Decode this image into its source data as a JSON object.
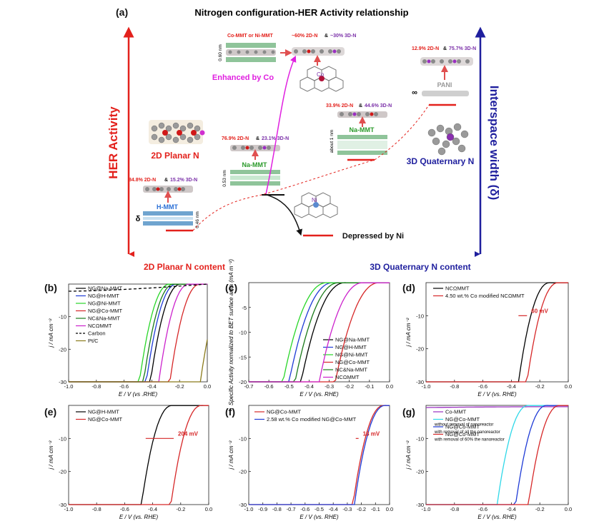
{
  "panel_a": {
    "label": "(a)",
    "title": "Nitrogen configuration-HER Activity relationship",
    "y_axis_label": "HER Activity",
    "right_axis_label": "Interspace width (δ)",
    "x_left_label": "2D Planar N content",
    "x_right_label": "3D Quaternary N content",
    "label_2d_planar": "2D Planar N",
    "label_3d_quaternary": "3D Quaternary N",
    "label_enhanced": "Enhanced by Co",
    "label_depressed": "Depressed by Ni",
    "hmmt": {
      "label": "H-MMT",
      "pct_2d": "84.8% 2D-N",
      "amp": "&",
      "pct_3d": "15.2% 3D-N",
      "spacing": "0.46 nm",
      "delta": "δ"
    },
    "namm_1": {
      "label": "Na-MMT",
      "pct_2d": "76.9% 2D-N",
      "amp": "&",
      "pct_3d": "23.1% 3D-N",
      "spacing": "0.53 nm"
    },
    "comm": {
      "label": "Co-MMT or Ni-MMT",
      "pct_2d": "~60% 2D-N",
      "amp": "&",
      "pct_3d": "~30% 3D-N",
      "spacing": "0.60 nm",
      "atom": "Co"
    },
    "namm_2": {
      "label": "Na-MMT",
      "pct_2d": "33.9% 2D-N",
      "amp": "&",
      "pct_3d": "44.6% 3D-N",
      "spacing": "about 1 nm"
    },
    "pani": {
      "label": "PANI",
      "pct_2d": "12.9% 2D-N",
      "amp": "&",
      "pct_3d": "75.7% 3D-N",
      "spacing": "∞"
    },
    "ni_atom": "Ni"
  },
  "colors": {
    "red": "#e3211c",
    "blue": "#1f1f9e",
    "magenta": "#e020e0",
    "purple": "#7a2fa8"
  },
  "common_axes": {
    "xlabel": "E / V (vs. RHE)",
    "xlabel_b": "E / V (vs .RHE)",
    "ylabel_j": "j / mA cm⁻²",
    "ylabel_c": "Specific Activity normalized to BET surface area (mA m⁻²)"
  },
  "chart_data": [
    {
      "panel": "(b)",
      "type": "line",
      "xlim": [
        -1.0,
        0.0
      ],
      "ylim": [
        -30,
        0
      ],
      "xticks": [
        "-1.0",
        "-0.8",
        "-0.6",
        "-0.4",
        "-0.2",
        "0.0"
      ],
      "yticks": [
        "-10",
        "-20",
        "-30"
      ],
      "legend": "top-left",
      "series": [
        {
          "name": "NG@Na-MMT",
          "color": "#000000",
          "onset": -0.41
        },
        {
          "name": "NG@H-MMT",
          "color": "#1f3bd6",
          "onset": -0.44
        },
        {
          "name": "NG@Ni-MMT",
          "color": "#28d628",
          "onset": -0.49
        },
        {
          "name": "NG@Co-MMT",
          "color": "#d62728",
          "onset": -0.27
        },
        {
          "name": "NC&Na-MMT",
          "color": "#1a7a1a",
          "onset": -0.46
        },
        {
          "name": "NCΩMMT",
          "color": "#cc22cc",
          "onset": -0.35
        },
        {
          "name": "Carbon",
          "color": "#000000",
          "dash": true
        },
        {
          "name": "Pt/C",
          "color": "#8a7a1a",
          "onset": -0.05
        }
      ]
    },
    {
      "panel": "(c)",
      "type": "line",
      "xlim": [
        -0.7,
        0.0
      ],
      "ylim": [
        -20,
        0
      ],
      "xticks": [
        "-0.7",
        "-0.6",
        "-0.5",
        "-0.4",
        "-0.3",
        "-0.2",
        "-0.1",
        "0.0"
      ],
      "yticks": [
        "-5",
        "-10",
        "-15",
        "-20"
      ],
      "legend": "bottom-right",
      "series": [
        {
          "name": "NG@Na-MMT",
          "color": "#000000",
          "onset": -0.44
        },
        {
          "name": "NG@H-MMT",
          "color": "#1f3bd6",
          "onset": -0.5
        },
        {
          "name": "NG@Ni-MMT",
          "color": "#28d628",
          "onset": -0.53
        },
        {
          "name": "NG@Co-MMT",
          "color": "#d62728",
          "onset": -0.27
        },
        {
          "name": "NC&Na-MMT",
          "color": "#1a7a1a",
          "onset": -0.47
        },
        {
          "name": "NCΩMMT",
          "color": "#cc22cc",
          "onset": -0.35
        }
      ]
    },
    {
      "panel": "(d)",
      "type": "line",
      "xlim": [
        -1.0,
        0.0
      ],
      "ylim": [
        -30,
        0
      ],
      "xticks": [
        "-1.0",
        "-0.8",
        "-0.6",
        "-0.4",
        "-0.2",
        "0.0"
      ],
      "yticks": [
        "-10",
        "-20",
        "-30"
      ],
      "legend": "top-left",
      "annotation": "60 mV",
      "series": [
        {
          "name": "NCΩMMT",
          "color": "#000000",
          "onset": -0.35
        },
        {
          "name": "4.50 wt.% Co modified NCΩMMT",
          "color": "#d62728",
          "onset": -0.29
        }
      ]
    },
    {
      "panel": "(e)",
      "type": "line",
      "xlim": [
        -1.0,
        0.0
      ],
      "ylim": [
        -30,
        0
      ],
      "xticks": [
        "-1.0",
        "-0.8",
        "-0.6",
        "-0.4",
        "-0.2",
        "0.0"
      ],
      "yticks": [
        "-10",
        "-20",
        "-30"
      ],
      "legend": "top-left",
      "annotation": "204 mV",
      "series": [
        {
          "name": "NG@H-MMT",
          "color": "#000000",
          "onset": -0.48
        },
        {
          "name": "NG@Co-MMT",
          "color": "#d62728",
          "onset": -0.27
        }
      ]
    },
    {
      "panel": "(f)",
      "type": "line",
      "xlim": [
        -1.0,
        0.0
      ],
      "ylim": [
        -30,
        0
      ],
      "xticks": [
        "-1.0",
        "-0.9",
        "-0.8",
        "-0.7",
        "-0.6",
        "-0.5",
        "-0.4",
        "-0.3",
        "-0.2",
        "-0.1",
        "0.0"
      ],
      "yticks": [
        "-10",
        "-20",
        "-30"
      ],
      "legend": "top-left",
      "annotation": "13 mV",
      "series": [
        {
          "name": "NG@Co-MMT",
          "color": "#d62728",
          "onset": -0.26
        },
        {
          "name": "2.58 wt.% Co modified NG@Co-MMT",
          "color": "#1f3bd6",
          "onset": -0.25
        }
      ]
    },
    {
      "panel": "(g)",
      "type": "line",
      "xlim": [
        -1.0,
        0.0
      ],
      "ylim": [
        -30,
        0
      ],
      "xticks": [
        "-1.0",
        "-0.8",
        "-0.6",
        "-0.4",
        "-0.2",
        "0.0"
      ],
      "yticks": [
        "-10",
        "-20",
        "-30"
      ],
      "legend": "top-left",
      "series": [
        {
          "name": "Co-MMT",
          "color": "#9a2fc0",
          "dash": false,
          "flat": true
        },
        {
          "name": "NG@Co-MMT",
          "note": "without removal of nanoreactor",
          "color": "#2fd8e8",
          "onset": -0.5
        },
        {
          "name": "NG@Co-MMT",
          "note": "with removal of all the nanoreactor",
          "color": "#1f3bd6",
          "onset": -0.37
        },
        {
          "name": "NG@Co-MMT",
          "note": "with removal of 60% the nanoreactor",
          "color": "#d62728",
          "onset": -0.28
        }
      ]
    }
  ]
}
